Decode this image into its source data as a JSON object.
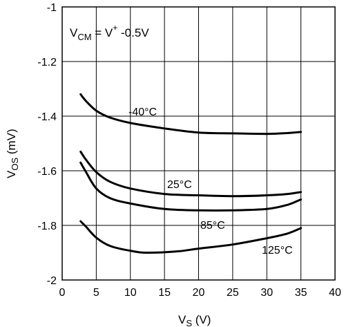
{
  "chart_data": {
    "type": "line",
    "xlabel_main": "V",
    "xlabel_sub": "S",
    "xlabel_unit": " (V)",
    "ylabel_main": "V",
    "ylabel_sub": "OS",
    "ylabel_unit": " (mV)",
    "xlim": [
      0,
      40
    ],
    "ylim": [
      -2,
      -1
    ],
    "x_ticks": [
      0,
      5,
      10,
      15,
      20,
      25,
      30,
      35,
      40
    ],
    "x_tick_labels": [
      "0",
      "5",
      "10",
      "15",
      "20",
      "25",
      "30",
      "35",
      "40"
    ],
    "y_ticks": [
      -2,
      -1.8,
      -1.6,
      -1.4,
      -1.2,
      -1
    ],
    "y_tick_labels": [
      "-2",
      "-1.8",
      "-1.6",
      "-1.4",
      "-1.2",
      "-1"
    ],
    "grid": true,
    "annotation": {
      "v": "V",
      "sub": "CM",
      "eq": " = V",
      "sup": "+",
      "tail": " -0.5V"
    },
    "series": [
      {
        "name": "-40°C",
        "points": [
          [
            2.7,
            -1.32
          ],
          [
            3.5,
            -1.345
          ],
          [
            5,
            -1.38
          ],
          [
            7,
            -1.405
          ],
          [
            10,
            -1.425
          ],
          [
            15,
            -1.445
          ],
          [
            20,
            -1.46
          ],
          [
            25,
            -1.463
          ],
          [
            30,
            -1.465
          ],
          [
            33,
            -1.462
          ],
          [
            35,
            -1.458
          ]
        ]
      },
      {
        "name": "25°C",
        "points": [
          [
            2.7,
            -1.53
          ],
          [
            3.5,
            -1.56
          ],
          [
            5,
            -1.605
          ],
          [
            7,
            -1.64
          ],
          [
            10,
            -1.665
          ],
          [
            15,
            -1.685
          ],
          [
            20,
            -1.69
          ],
          [
            25,
            -1.693
          ],
          [
            30,
            -1.69
          ],
          [
            33,
            -1.685
          ],
          [
            35,
            -1.678
          ]
        ]
      },
      {
        "name": "85°C",
        "points": [
          [
            2.7,
            -1.57
          ],
          [
            3.5,
            -1.605
          ],
          [
            5,
            -1.665
          ],
          [
            7,
            -1.7
          ],
          [
            10,
            -1.72
          ],
          [
            15,
            -1.74
          ],
          [
            20,
            -1.745
          ],
          [
            25,
            -1.745
          ],
          [
            30,
            -1.74
          ],
          [
            33,
            -1.725
          ],
          [
            35,
            -1.705
          ]
        ]
      },
      {
        "name": "125°C",
        "points": [
          [
            2.7,
            -1.785
          ],
          [
            3.5,
            -1.805
          ],
          [
            5,
            -1.845
          ],
          [
            7,
            -1.875
          ],
          [
            10,
            -1.893
          ],
          [
            12.5,
            -1.9
          ],
          [
            17,
            -1.895
          ],
          [
            20,
            -1.885
          ],
          [
            25,
            -1.87
          ],
          [
            30,
            -1.847
          ],
          [
            33,
            -1.83
          ],
          [
            35,
            -1.81
          ]
        ]
      }
    ]
  }
}
